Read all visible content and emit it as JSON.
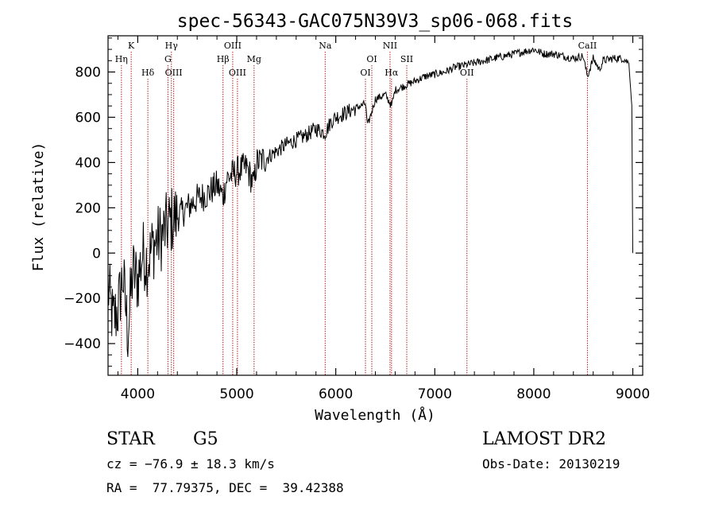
{
  "chart_data": {
    "type": "line",
    "title": "spec-56343-GAC075N39V3_sp06-068.fits",
    "xlabel": "Wavelength (Å)",
    "ylabel": "Flux (relative)",
    "xlim": [
      3700,
      9100
    ],
    "ylim": [
      -540,
      960
    ],
    "xticks": [
      4000,
      5000,
      6000,
      7000,
      8000,
      9000
    ],
    "yticks": [
      -400,
      -200,
      0,
      200,
      400,
      600,
      800
    ],
    "grid": false,
    "line_color": "#000000",
    "marker_color": "#b22222",
    "series": [
      {
        "x": [
          3700,
          3750,
          3800,
          3850,
          3900,
          3950,
          4000,
          4050,
          4100,
          4150,
          4200,
          4250,
          4300,
          4350,
          4400,
          4500,
          4600,
          4700,
          4800,
          4861,
          4900,
          5000,
          5100,
          5172,
          5200,
          5300,
          5400,
          5500,
          5600,
          5700,
          5800,
          5893,
          5950,
          6000,
          6100,
          6200,
          6300,
          6320,
          6400,
          6500,
          6563,
          6600,
          6700,
          6800,
          6900,
          7000,
          7100,
          7200,
          7300,
          7400,
          7500,
          7600,
          7700,
          7800,
          7900,
          8000,
          8100,
          8200,
          8300,
          8400,
          8498,
          8542,
          8600,
          8662,
          8700,
          8800,
          8900,
          8960,
          8990,
          9000
        ],
        "y": [
          -150,
          -300,
          -250,
          -100,
          -350,
          -80,
          -120,
          0,
          -40,
          30,
          60,
          80,
          120,
          150,
          160,
          200,
          240,
          260,
          300,
          250,
          330,
          360,
          380,
          300,
          400,
          420,
          450,
          480,
          500,
          520,
          550,
          530,
          580,
          600,
          620,
          640,
          660,
          560,
          680,
          700,
          650,
          720,
          740,
          760,
          780,
          790,
          800,
          820,
          830,
          840,
          850,
          860,
          870,
          880,
          890,
          900,
          880,
          880,
          870,
          860,
          870,
          780,
          860,
          810,
          850,
          860,
          860,
          840,
          650,
          0
        ]
      }
    ],
    "line_markers": [
      {
        "label": "Hη",
        "x": 3835,
        "row": 2
      },
      {
        "label": "K",
        "x": 3934,
        "row": 1
      },
      {
        "label": "Hδ",
        "x": 4102,
        "row": 3
      },
      {
        "label": "Hγ",
        "x": 4340,
        "row": 1
      },
      {
        "label": "G",
        "x": 4305,
        "row": 2
      },
      {
        "label": "OIII",
        "x": 4363,
        "row": 3
      },
      {
        "label": "Hβ",
        "x": 4861,
        "row": 2
      },
      {
        "label": "OIII",
        "x": 4959,
        "row": 1
      },
      {
        "label": "OIII",
        "x": 5007,
        "row": 3
      },
      {
        "label": "Mg",
        "x": 5175,
        "row": 2
      },
      {
        "label": "Na",
        "x": 5893,
        "row": 1
      },
      {
        "label": "OI",
        "x": 6300,
        "row": 3
      },
      {
        "label": "OI",
        "x": 6364,
        "row": 2
      },
      {
        "label": "NII",
        "x": 6548,
        "row": 1
      },
      {
        "label": "Hα",
        "x": 6563,
        "row": 3
      },
      {
        "label": "SII",
        "x": 6717,
        "row": 2
      },
      {
        "label": "OII",
        "x": 7325,
        "row": 3
      },
      {
        "label": "CaII",
        "x": 8542,
        "row": 1
      }
    ]
  },
  "footer": {
    "object_type": "STAR",
    "subclass": "G5",
    "survey": "LAMOST DR2",
    "redshift": "cz = −76.9 ± 18.3 km/s",
    "obs_date": "Obs-Date: 20130219",
    "coords": "RA =  77.79375, DEC =  39.42388"
  }
}
